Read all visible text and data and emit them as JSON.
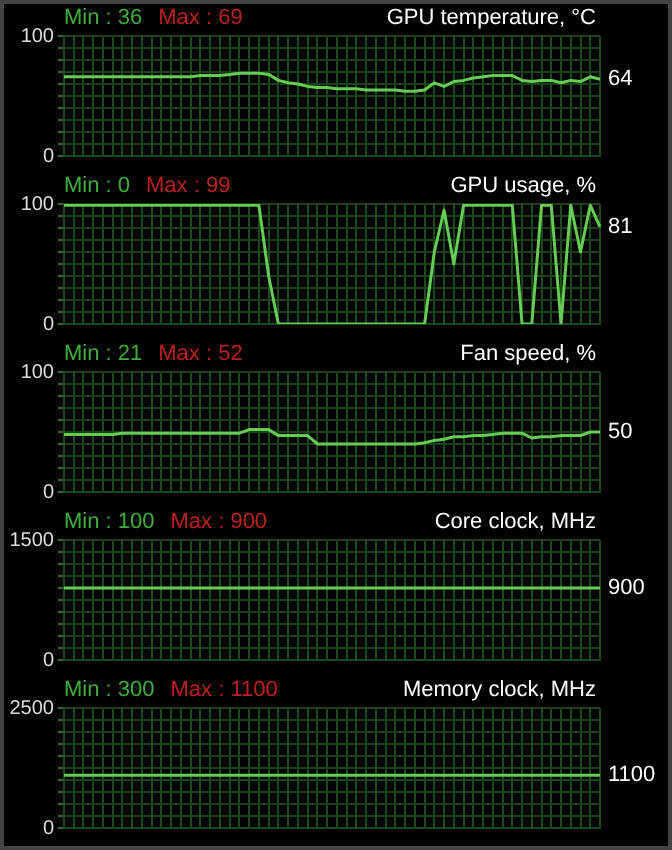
{
  "chart_data": [
    {
      "type": "line",
      "title": "GPU temperature, °C",
      "annotations": [
        "Min : 36",
        "Max : 69"
      ],
      "categories": [
        null,
        null,
        null,
        null,
        null,
        null,
        null,
        null,
        null,
        null,
        null,
        null,
        null,
        null,
        null,
        null,
        null,
        null,
        null,
        null,
        null,
        null,
        null,
        null,
        null,
        null,
        null,
        null,
        null,
        null,
        null,
        null,
        null,
        null,
        null,
        null,
        null,
        null,
        null,
        null,
        null,
        null,
        null,
        null,
        null,
        null,
        null,
        null,
        null,
        null,
        null,
        null,
        null,
        null,
        null,
        null
      ],
      "series": [
        {
          "color": "#66cc55",
          "values": [
            66,
            66,
            66,
            66,
            66,
            66,
            66,
            66,
            66,
            66,
            66,
            66,
            66,
            66,
            67,
            67,
            67,
            68,
            69,
            69,
            69,
            68,
            63,
            61,
            60,
            58,
            57,
            57,
            56,
            56,
            56,
            55,
            55,
            55,
            55,
            54,
            54,
            55,
            61,
            58,
            62,
            63,
            65,
            66,
            67,
            67,
            67,
            63,
            62,
            63,
            63,
            61,
            63,
            62,
            66,
            64
          ],
          "value_labels": [
            null,
            null,
            null,
            null,
            null,
            null,
            null,
            null,
            null,
            null,
            null,
            null,
            null,
            null,
            null,
            null,
            null,
            null,
            null,
            null,
            null,
            null,
            null,
            null,
            null,
            null,
            null,
            null,
            null,
            null,
            null,
            null,
            null,
            null,
            null,
            null,
            null,
            null,
            null,
            null,
            null,
            null,
            null,
            null,
            null,
            null,
            null,
            null,
            null,
            null,
            null,
            null,
            null,
            null,
            null,
            "64"
          ]
        }
      ],
      "ylim": [
        0,
        100
      ],
      "yticks": [
        0,
        {
          "value": 10,
          "label": null
        },
        {
          "value": 20,
          "label": null
        },
        {
          "value": 30,
          "label": null
        },
        {
          "value": 40,
          "label": null
        },
        {
          "value": 50,
          "label": null
        },
        {
          "value": 60,
          "label": null
        },
        {
          "value": 70,
          "label": null
        },
        {
          "value": 80,
          "label": null
        },
        {
          "value": 90,
          "label": null
        },
        100
      ],
      "grid": true,
      "tick_labels": "y",
      "legend": false,
      "marker": "none"
    },
    {
      "type": "line",
      "title": "GPU usage, %",
      "annotations": [
        "Min : 0",
        "Max : 99"
      ],
      "categories": [
        null,
        null,
        null,
        null,
        null,
        null,
        null,
        null,
        null,
        null,
        null,
        null,
        null,
        null,
        null,
        null,
        null,
        null,
        null,
        null,
        null,
        null,
        null,
        null,
        null,
        null,
        null,
        null,
        null,
        null,
        null,
        null,
        null,
        null,
        null,
        null,
        null,
        null,
        null,
        null,
        null,
        null,
        null,
        null,
        null,
        null,
        null,
        null,
        null,
        null,
        null,
        null,
        null,
        null,
        null,
        null
      ],
      "series": [
        {
          "color": "#66cc55",
          "values": [
            99,
            99,
            99,
            99,
            99,
            99,
            99,
            99,
            99,
            99,
            99,
            99,
            99,
            99,
            99,
            99,
            99,
            99,
            99,
            99,
            99,
            40,
            0,
            0,
            0,
            0,
            0,
            0,
            0,
            0,
            0,
            0,
            0,
            0,
            0,
            0,
            0,
            0,
            60,
            95,
            50,
            99,
            99,
            99,
            99,
            99,
            99,
            0,
            0,
            99,
            99,
            0,
            99,
            60,
            99,
            81
          ],
          "value_labels": [
            null,
            null,
            null,
            null,
            null,
            null,
            null,
            null,
            null,
            null,
            null,
            null,
            null,
            null,
            null,
            null,
            null,
            null,
            null,
            null,
            null,
            null,
            null,
            null,
            null,
            null,
            null,
            null,
            null,
            null,
            null,
            null,
            null,
            null,
            null,
            null,
            null,
            null,
            null,
            null,
            null,
            null,
            null,
            null,
            null,
            null,
            null,
            null,
            null,
            null,
            null,
            null,
            null,
            null,
            null,
            "81"
          ]
        }
      ],
      "ylim": [
        0,
        100
      ],
      "yticks": [
        0,
        {
          "value": 10,
          "label": null
        },
        {
          "value": 20,
          "label": null
        },
        {
          "value": 30,
          "label": null
        },
        {
          "value": 40,
          "label": null
        },
        {
          "value": 50,
          "label": null
        },
        {
          "value": 60,
          "label": null
        },
        {
          "value": 70,
          "label": null
        },
        {
          "value": 80,
          "label": null
        },
        {
          "value": 90,
          "label": null
        },
        100
      ],
      "grid": true,
      "tick_labels": "y",
      "legend": false,
      "marker": "none"
    },
    {
      "type": "line",
      "title": "Fan speed, %",
      "annotations": [
        "Min : 21",
        "Max : 52"
      ],
      "categories": [
        null,
        null,
        null,
        null,
        null,
        null,
        null,
        null,
        null,
        null,
        null,
        null,
        null,
        null,
        null,
        null,
        null,
        null,
        null,
        null,
        null,
        null,
        null,
        null,
        null,
        null,
        null,
        null,
        null,
        null,
        null,
        null,
        null,
        null,
        null,
        null,
        null,
        null,
        null,
        null,
        null,
        null,
        null,
        null,
        null,
        null,
        null,
        null,
        null,
        null,
        null,
        null,
        null,
        null,
        null,
        null
      ],
      "series": [
        {
          "color": "#66cc55",
          "values": [
            48,
            48,
            48,
            48,
            48,
            48,
            49,
            49,
            49,
            49,
            49,
            49,
            49,
            49,
            49,
            49,
            49,
            49,
            49,
            52,
            52,
            52,
            47,
            47,
            47,
            47,
            40,
            40,
            40,
            40,
            40,
            40,
            40,
            40,
            40,
            40,
            40,
            41,
            43,
            44,
            46,
            46,
            47,
            47,
            48,
            49,
            49,
            49,
            45,
            46,
            46,
            47,
            47,
            47,
            50,
            50
          ],
          "value_labels": [
            null,
            null,
            null,
            null,
            null,
            null,
            null,
            null,
            null,
            null,
            null,
            null,
            null,
            null,
            null,
            null,
            null,
            null,
            null,
            null,
            null,
            null,
            null,
            null,
            null,
            null,
            null,
            null,
            null,
            null,
            null,
            null,
            null,
            null,
            null,
            null,
            null,
            null,
            null,
            null,
            null,
            null,
            null,
            null,
            null,
            null,
            null,
            null,
            null,
            null,
            null,
            null,
            null,
            null,
            null,
            "50"
          ]
        }
      ],
      "ylim": [
        0,
        100
      ],
      "yticks": [
        0,
        {
          "value": 10,
          "label": null
        },
        {
          "value": 20,
          "label": null
        },
        {
          "value": 30,
          "label": null
        },
        {
          "value": 40,
          "label": null
        },
        {
          "value": 50,
          "label": null
        },
        {
          "value": 60,
          "label": null
        },
        {
          "value": 70,
          "label": null
        },
        {
          "value": 80,
          "label": null
        },
        {
          "value": 90,
          "label": null
        },
        100
      ],
      "grid": true,
      "tick_labels": "y",
      "legend": false,
      "marker": "none"
    },
    {
      "type": "line",
      "title": "Core clock, MHz",
      "annotations": [
        "Min : 100",
        "Max : 900"
      ],
      "categories": [
        null,
        null,
        null,
        null,
        null,
        null,
        null,
        null,
        null,
        null,
        null,
        null,
        null,
        null,
        null,
        null,
        null,
        null,
        null,
        null,
        null,
        null,
        null,
        null,
        null,
        null,
        null,
        null,
        null,
        null,
        null,
        null,
        null,
        null,
        null,
        null,
        null,
        null,
        null,
        null,
        null,
        null,
        null,
        null,
        null,
        null,
        null,
        null,
        null,
        null,
        null,
        null,
        null,
        null,
        null,
        null
      ],
      "series": [
        {
          "color": "#66cc55",
          "values": [
            900,
            900,
            900,
            900,
            900,
            900,
            900,
            900,
            900,
            900,
            900,
            900,
            900,
            900,
            900,
            900,
            900,
            900,
            900,
            900,
            900,
            900,
            900,
            900,
            900,
            900,
            900,
            900,
            900,
            900,
            900,
            900,
            900,
            900,
            900,
            900,
            900,
            900,
            900,
            900,
            900,
            900,
            900,
            900,
            900,
            900,
            900,
            900,
            900,
            900,
            900,
            900,
            900,
            900,
            900,
            900
          ],
          "value_labels": [
            null,
            null,
            null,
            null,
            null,
            null,
            null,
            null,
            null,
            null,
            null,
            null,
            null,
            null,
            null,
            null,
            null,
            null,
            null,
            null,
            null,
            null,
            null,
            null,
            null,
            null,
            null,
            null,
            null,
            null,
            null,
            null,
            null,
            null,
            null,
            null,
            null,
            null,
            null,
            null,
            null,
            null,
            null,
            null,
            null,
            null,
            null,
            null,
            null,
            null,
            null,
            null,
            null,
            null,
            null,
            "900"
          ]
        }
      ],
      "ylim": [
        0,
        1500
      ],
      "yticks": [
        0,
        {
          "value": 150,
          "label": null
        },
        {
          "value": 300,
          "label": null
        },
        {
          "value": 450,
          "label": null
        },
        {
          "value": 600,
          "label": null
        },
        {
          "value": 750,
          "label": null
        },
        {
          "value": 900,
          "label": null
        },
        {
          "value": 1050,
          "label": null
        },
        {
          "value": 1200,
          "label": null
        },
        {
          "value": 1350,
          "label": null
        },
        1500
      ],
      "grid": true,
      "tick_labels": "y",
      "legend": false,
      "marker": "none"
    },
    {
      "type": "line",
      "title": "Memory clock, MHz",
      "annotations": [
        "Min : 300",
        "Max : 1100"
      ],
      "categories": [
        null,
        null,
        null,
        null,
        null,
        null,
        null,
        null,
        null,
        null,
        null,
        null,
        null,
        null,
        null,
        null,
        null,
        null,
        null,
        null,
        null,
        null,
        null,
        null,
        null,
        null,
        null,
        null,
        null,
        null,
        null,
        null,
        null,
        null,
        null,
        null,
        null,
        null,
        null,
        null,
        null,
        null,
        null,
        null,
        null,
        null,
        null,
        null,
        null,
        null,
        null,
        null,
        null,
        null,
        null,
        null
      ],
      "series": [
        {
          "color": "#66cc55",
          "values": [
            1100,
            1100,
            1100,
            1100,
            1100,
            1100,
            1100,
            1100,
            1100,
            1100,
            1100,
            1100,
            1100,
            1100,
            1100,
            1100,
            1100,
            1100,
            1100,
            1100,
            1100,
            1100,
            1100,
            1100,
            1100,
            1100,
            1100,
            1100,
            1100,
            1100,
            1100,
            1100,
            1100,
            1100,
            1100,
            1100,
            1100,
            1100,
            1100,
            1100,
            1100,
            1100,
            1100,
            1100,
            1100,
            1100,
            1100,
            1100,
            1100,
            1100,
            1100,
            1100,
            1100,
            1100,
            1100,
            1100
          ],
          "value_labels": [
            null,
            null,
            null,
            null,
            null,
            null,
            null,
            null,
            null,
            null,
            null,
            null,
            null,
            null,
            null,
            null,
            null,
            null,
            null,
            null,
            null,
            null,
            null,
            null,
            null,
            null,
            null,
            null,
            null,
            null,
            null,
            null,
            null,
            null,
            null,
            null,
            null,
            null,
            null,
            null,
            null,
            null,
            null,
            null,
            null,
            null,
            null,
            null,
            null,
            null,
            null,
            null,
            null,
            null,
            null,
            "1100"
          ]
        }
      ],
      "ylim": [
        0,
        2500
      ],
      "yticks": [
        0,
        {
          "value": 250,
          "label": null
        },
        {
          "value": 500,
          "label": null
        },
        {
          "value": 750,
          "label": null
        },
        {
          "value": 1000,
          "label": null
        },
        {
          "value": 1250,
          "label": null
        },
        {
          "value": 1500,
          "label": null
        },
        {
          "value": 1750,
          "label": null
        },
        {
          "value": 2000,
          "label": null
        },
        {
          "value": 2250,
          "label": null
        },
        2500
      ],
      "grid": true,
      "tick_labels": "y",
      "legend": false,
      "marker": "none"
    }
  ]
}
